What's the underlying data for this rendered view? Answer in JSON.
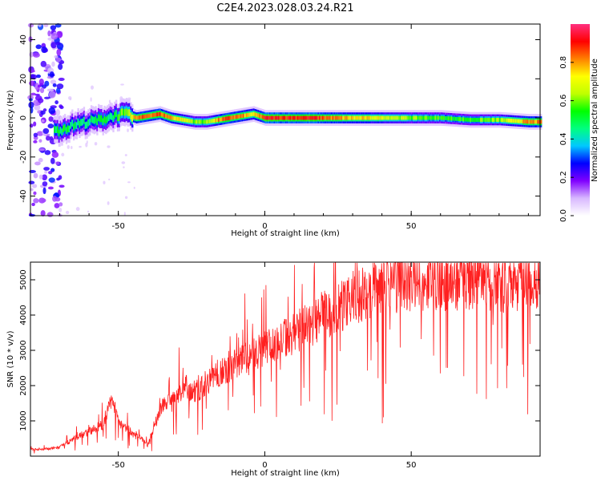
{
  "title": "C2E4.2023.028.03.24.R21",
  "chart_data": [
    {
      "type": "heatmap",
      "xlabel": "Height of straight line (km)",
      "ylabel": "Frequency (Hz)",
      "xlim": [
        -80,
        94
      ],
      "ylim": [
        -50,
        48
      ],
      "xticks": [
        -50,
        0,
        50
      ],
      "yticks": [
        -40,
        -20,
        0,
        20,
        40
      ],
      "colorbar": {
        "label": "Normalized spectral amplitude",
        "range": [
          0,
          1
        ],
        "ticks": [
          0.0,
          0.2,
          0.4,
          0.6,
          0.8
        ],
        "colormap": [
          "#ffffff",
          "#d8b8ff",
          "#8000ff",
          "#0000ff",
          "#00c8ff",
          "#00ff80",
          "#00ff00",
          "#c0ff00",
          "#ffff00",
          "#ff8000",
          "#ff0000",
          "#ff3080"
        ]
      },
      "ridge": {
        "x": [
          -72,
          -68,
          -64,
          -60,
          -56,
          -52,
          -48,
          -44,
          -40,
          -36,
          -32,
          -28,
          -24,
          -20,
          -16,
          -12,
          -8,
          -4,
          0,
          4,
          8,
          12,
          16,
          20,
          30,
          40,
          50,
          60,
          70,
          80,
          90,
          94
        ],
        "frequency": [
          -7,
          -5,
          -3,
          -2,
          -1,
          1,
          2,
          0,
          1,
          2,
          0,
          -1,
          -2,
          -2,
          -1,
          0,
          1,
          2,
          0,
          0,
          0,
          0,
          0,
          0,
          0,
          0,
          0,
          0,
          -1,
          -1,
          -2,
          -2
        ],
        "amplitude": [
          0.5,
          0.5,
          0.45,
          0.45,
          0.5,
          0.5,
          0.6,
          0.8,
          0.85,
          0.85,
          0.8,
          0.7,
          0.6,
          0.6,
          0.8,
          0.85,
          0.8,
          0.7,
          0.9,
          0.9,
          0.9,
          0.9,
          0.9,
          0.85,
          0.75,
          0.7,
          0.6,
          0.55,
          0.55,
          0.6,
          0.8,
          0.8
        ]
      }
    },
    {
      "type": "line",
      "xlabel": "Height of straight line (km)",
      "ylabel": "SNR (10 * v/v)",
      "xlim": [
        -80,
        94
      ],
      "ylim": [
        0,
        5500
      ],
      "xticks": [
        -50,
        0,
        50
      ],
      "yticks": [
        1000,
        2000,
        3000,
        4000,
        5000
      ],
      "color": "#ff2020",
      "series": [
        {
          "x": [
            -80,
            -75,
            -70,
            -65,
            -60,
            -55,
            -52,
            -50,
            -47,
            -45,
            -42,
            -40,
            -37,
            -35,
            -32,
            -30,
            -27,
            -25,
            -22,
            -20,
            -15,
            -10,
            -5,
            0,
            5,
            10,
            15,
            20,
            25,
            30,
            35,
            40,
            45,
            50,
            55,
            60,
            65,
            70,
            75,
            80,
            85,
            90,
            94
          ],
          "y": [
            200,
            200,
            250,
            500,
            700,
            900,
            1700,
            1000,
            800,
            600,
            500,
            300,
            1000,
            1500,
            1500,
            1700,
            2000,
            1800,
            1900,
            2100,
            2400,
            2600,
            2800,
            3100,
            3300,
            3500,
            3700,
            4000,
            4200,
            4500,
            4600,
            4800,
            4900,
            4900,
            5000,
            4900,
            4950,
            4900,
            5000,
            4900,
            4950,
            5000,
            5100
          ]
        }
      ]
    }
  ]
}
